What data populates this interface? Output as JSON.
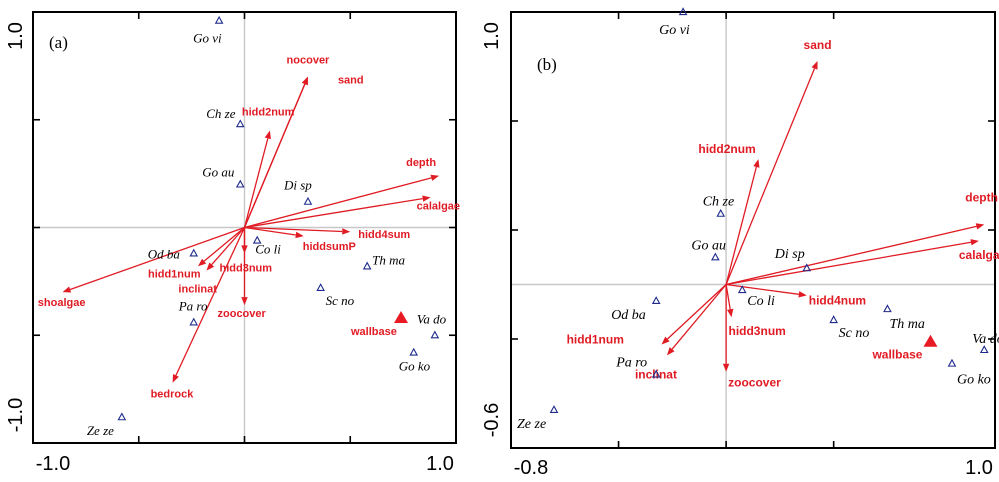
{
  "chart_data": [
    {
      "type": "scatter",
      "panel_label": "(a)",
      "xlim": [
        -1.0,
        1.0
      ],
      "ylim": [
        -1.0,
        1.0
      ],
      "xtick_labels": [
        "-1.0",
        "1.0"
      ],
      "ytick_labels": [
        "1.0",
        "-1.0"
      ],
      "vectors": [
        {
          "name": "nocover",
          "x": 0.3,
          "y": 0.7
        },
        {
          "name": "sand",
          "x": 0.3,
          "y": 0.7
        },
        {
          "name": "hidd2num",
          "x": 0.12,
          "y": 0.45
        },
        {
          "name": "depth",
          "x": 0.92,
          "y": 0.24
        },
        {
          "name": "calalgae",
          "x": 0.88,
          "y": 0.14
        },
        {
          "name": "hidd4sum",
          "x": 0.5,
          "y": -0.02
        },
        {
          "name": "hiddsumP",
          "x": 0.28,
          "y": -0.04
        },
        {
          "name": "hidd3num",
          "x": 0.0,
          "y": -0.12
        },
        {
          "name": "hidd1num",
          "x": -0.22,
          "y": -0.18
        },
        {
          "name": "inclinat",
          "x": -0.18,
          "y": -0.2
        },
        {
          "name": "shoalgae",
          "x": -0.86,
          "y": -0.3
        },
        {
          "name": "zoocover",
          "x": 0.0,
          "y": -0.36
        },
        {
          "name": "bedrock",
          "x": -0.34,
          "y": -0.72
        }
      ],
      "sites": [
        {
          "name": "Go vi",
          "x": -0.12,
          "y": 0.96
        },
        {
          "name": "Ch ze",
          "x": -0.02,
          "y": 0.48
        },
        {
          "name": "Go au",
          "x": -0.02,
          "y": 0.2
        },
        {
          "name": "Di sp",
          "x": 0.3,
          "y": 0.12
        },
        {
          "name": "Co li",
          "x": 0.06,
          "y": -0.06
        },
        {
          "name": "Od ba",
          "x": -0.24,
          "y": -0.12
        },
        {
          "name": "Pa ro",
          "x": -0.24,
          "y": -0.44
        },
        {
          "name": "Th ma",
          "x": 0.58,
          "y": -0.18
        },
        {
          "name": "Sc no",
          "x": 0.36,
          "y": -0.28
        },
        {
          "name": "Va do",
          "x": 0.9,
          "y": -0.5
        },
        {
          "name": "Go ko",
          "x": 0.8,
          "y": -0.58
        },
        {
          "name": "Ze ze",
          "x": -0.58,
          "y": -0.88
        }
      ],
      "supplementary": {
        "name": "wallbase",
        "x": 0.74,
        "y": -0.42
      }
    },
    {
      "type": "scatter",
      "panel_label": "(b)",
      "xlim": [
        -0.8,
        1.0
      ],
      "ylim": [
        -0.6,
        1.0
      ],
      "xtick_labels": [
        "-0.8",
        "1.0"
      ],
      "ytick_labels": [
        "1.0",
        "-0.6"
      ],
      "vectors": [
        {
          "name": "sand",
          "x": 0.34,
          "y": 0.82
        },
        {
          "name": "hidd2num",
          "x": 0.12,
          "y": 0.46
        },
        {
          "name": "depth",
          "x": 0.96,
          "y": 0.22
        },
        {
          "name": "calalgae",
          "x": 0.94,
          "y": 0.16
        },
        {
          "name": "hidd4num",
          "x": 0.3,
          "y": -0.04
        },
        {
          "name": "hidd3num",
          "x": 0.02,
          "y": -0.12
        },
        {
          "name": "hidd1num",
          "x": -0.24,
          "y": -0.22
        },
        {
          "name": "inclinat",
          "x": -0.22,
          "y": -0.26
        },
        {
          "name": "zoocover",
          "x": 0.0,
          "y": -0.32
        }
      ],
      "sites": [
        {
          "name": "Go vi",
          "x": -0.16,
          "y": 1.0
        },
        {
          "name": "Ch ze",
          "x": -0.02,
          "y": 0.26
        },
        {
          "name": "Go au",
          "x": -0.04,
          "y": 0.1
        },
        {
          "name": "Di sp",
          "x": 0.3,
          "y": 0.06
        },
        {
          "name": "Co li",
          "x": 0.06,
          "y": -0.02
        },
        {
          "name": "Od ba",
          "x": -0.26,
          "y": -0.06
        },
        {
          "name": "Th ma",
          "x": 0.6,
          "y": -0.09
        },
        {
          "name": "Sc no",
          "x": 0.4,
          "y": -0.13
        },
        {
          "name": "Pa ro",
          "x": -0.26,
          "y": -0.33
        },
        {
          "name": "Va do",
          "x": 0.96,
          "y": -0.24
        },
        {
          "name": "Go ko",
          "x": 0.84,
          "y": -0.29
        },
        {
          "name": "Ze ze",
          "x": -0.64,
          "y": -0.46
        }
      ],
      "supplementary": {
        "name": "wallbase",
        "x": 0.76,
        "y": -0.21
      }
    }
  ]
}
